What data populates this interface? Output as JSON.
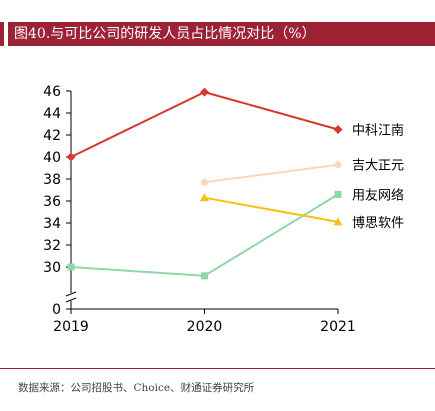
{
  "title": "图40.与可比公司的研发人员占比情况对比（%）",
  "source": "数据来源：公司招股书、Choice、财通证券研究所",
  "chart_data": {
    "type": "line",
    "x": [
      "2019",
      "2020",
      "2021"
    ],
    "ylim": [
      28,
      46
    ],
    "yticks_shown": [
      0,
      30,
      32,
      34,
      36,
      38,
      40,
      42,
      44,
      46
    ],
    "axis_break": true,
    "legend_placement": "right, at line ends",
    "series": [
      {
        "name": "中科江南",
        "values": [
          40.0,
          45.9,
          42.5
        ],
        "color": "#d9362b",
        "marker": "diamond"
      },
      {
        "name": "吉大正元",
        "values": [
          null,
          37.7,
          39.3
        ],
        "color": "#fcd9b6",
        "marker": "circle"
      },
      {
        "name": "用友网络",
        "values": [
          30.0,
          29.2,
          36.6
        ],
        "color": "#8fd6a8",
        "marker": "square"
      },
      {
        "name": "博思软件",
        "values": [
          null,
          36.3,
          34.1
        ],
        "color": "#f5c116",
        "marker": "triangle"
      }
    ]
  }
}
